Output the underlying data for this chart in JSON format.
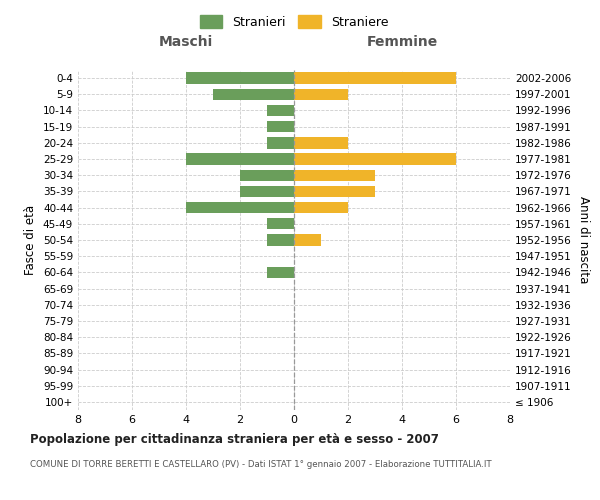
{
  "age_groups": [
    "100+",
    "95-99",
    "90-94",
    "85-89",
    "80-84",
    "75-79",
    "70-74",
    "65-69",
    "60-64",
    "55-59",
    "50-54",
    "45-49",
    "40-44",
    "35-39",
    "30-34",
    "25-29",
    "20-24",
    "15-19",
    "10-14",
    "5-9",
    "0-4"
  ],
  "birth_years": [
    "≤ 1906",
    "1907-1911",
    "1912-1916",
    "1917-1921",
    "1922-1926",
    "1927-1931",
    "1932-1936",
    "1937-1941",
    "1942-1946",
    "1947-1951",
    "1952-1956",
    "1957-1961",
    "1962-1966",
    "1967-1971",
    "1972-1976",
    "1977-1981",
    "1982-1986",
    "1987-1991",
    "1992-1996",
    "1997-2001",
    "2002-2006"
  ],
  "maschi": [
    0,
    0,
    0,
    0,
    0,
    0,
    0,
    0,
    1,
    0,
    1,
    1,
    4,
    2,
    2,
    4,
    1,
    1,
    1,
    3,
    4
  ],
  "femmine": [
    0,
    0,
    0,
    0,
    0,
    0,
    0,
    0,
    0,
    0,
    1,
    0,
    2,
    3,
    3,
    6,
    2,
    0,
    0,
    2,
    6
  ],
  "male_color": "#6a9e5b",
  "female_color": "#f0b429",
  "title": "Popolazione per cittadinanza straniera per età e sesso - 2007",
  "subtitle": "COMUNE DI TORRE BERETTI E CASTELLARO (PV) - Dati ISTAT 1° gennaio 2007 - Elaborazione TUTTITALIA.IT",
  "left_label": "Maschi",
  "right_label": "Femmine",
  "left_axis_label": "Fasce di età",
  "right_axis_label": "Anni di nascita",
  "legend_male": "Stranieri",
  "legend_female": "Straniere",
  "xlim": 8,
  "background_color": "#ffffff",
  "grid_color": "#cccccc"
}
